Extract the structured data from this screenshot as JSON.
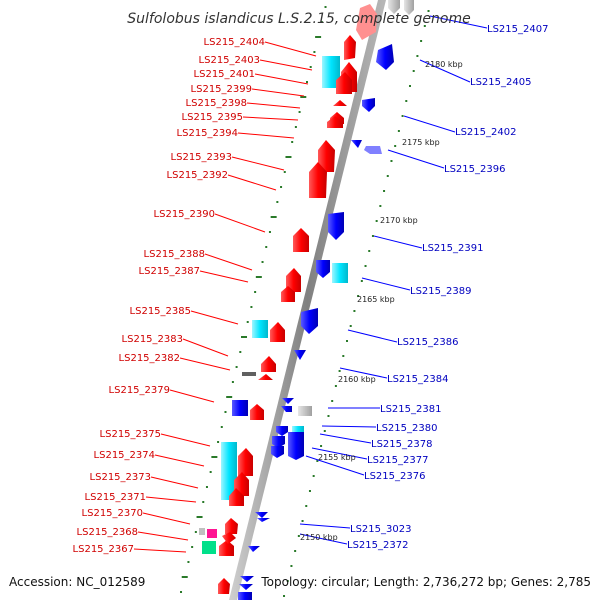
{
  "title": "Sulfolobus islandicus L.S.2.15, complete genome",
  "footer": {
    "accession": "Accession: NC_012589",
    "summary": "Topology: circular; Length: 2,736,272 bp; Genes: 2,785"
  },
  "colors": {
    "plus_strand": "#ff0000",
    "minus_strand": "#0000ff",
    "highlight": "#00e5ff",
    "grey_feature": "#c0c0c0",
    "pink_feature": "#ff1493",
    "green_feature": "#00e08a",
    "purple_feature": "#8080ff",
    "left_label": "#d00000",
    "right_label": "#0000c0",
    "backbone": "#808080"
  },
  "left_genes": [
    {
      "id": "LS215_2404",
      "color": "red"
    },
    {
      "id": "LS215_2403",
      "color": "cyan"
    },
    {
      "id": "LS215_2401",
      "color": "red"
    },
    {
      "id": "LS215_2399",
      "color": "red"
    },
    {
      "id": "LS215_2398",
      "color": "red"
    },
    {
      "id": "LS215_2395",
      "color": "red"
    },
    {
      "id": "LS215_2394",
      "color": "red"
    },
    {
      "id": "LS215_2393",
      "color": "red"
    },
    {
      "id": "LS215_2392",
      "color": "red"
    },
    {
      "id": "LS215_2390",
      "color": "red"
    },
    {
      "id": "LS215_2388",
      "color": "red"
    },
    {
      "id": "LS215_2387",
      "color": "red"
    },
    {
      "id": "LS215_2385",
      "color": "cyan"
    },
    {
      "id": "LS215_2383",
      "color": "red"
    },
    {
      "id": "LS215_2382",
      "color": "grey"
    },
    {
      "id": "LS215_2379",
      "color": "red"
    },
    {
      "id": "LS215_2375",
      "color": "cyan"
    },
    {
      "id": "LS215_2374",
      "color": "red"
    },
    {
      "id": "LS215_2373",
      "color": "red"
    },
    {
      "id": "LS215_2371",
      "color": "red"
    },
    {
      "id": "LS215_2370",
      "color": "pink"
    },
    {
      "id": "LS215_2368",
      "color": "green"
    },
    {
      "id": "LS215_2367",
      "color": "red"
    }
  ],
  "right_genes": [
    {
      "id": "LS215_2407",
      "color": "grey"
    },
    {
      "id": "LS215_2405",
      "color": "blue"
    },
    {
      "id": "LS215_2402",
      "color": "blue"
    },
    {
      "id": "LS215_2396",
      "color": "purple"
    },
    {
      "id": "LS215_2391",
      "color": "blue"
    },
    {
      "id": "LS215_2389",
      "color": "cyan"
    },
    {
      "id": "LS215_2386",
      "color": "blue"
    },
    {
      "id": "LS215_2384",
      "color": "blue"
    },
    {
      "id": "LS215_2381",
      "color": "grey"
    },
    {
      "id": "LS215_2380",
      "color": "blue"
    },
    {
      "id": "LS215_2378",
      "color": "blue"
    },
    {
      "id": "LS215_2377",
      "color": "blue"
    },
    {
      "id": "LS215_2376",
      "color": "blue"
    },
    {
      "id": "LS215_3023",
      "color": "blue"
    },
    {
      "id": "LS215_2372",
      "color": "blue"
    }
  ],
  "scale_ticks": [
    "2180 kbp",
    "2175 kbp",
    "2170 kbp",
    "2165 kbp",
    "2160 kbp",
    "2155 kbp",
    "2150 kbp"
  ]
}
